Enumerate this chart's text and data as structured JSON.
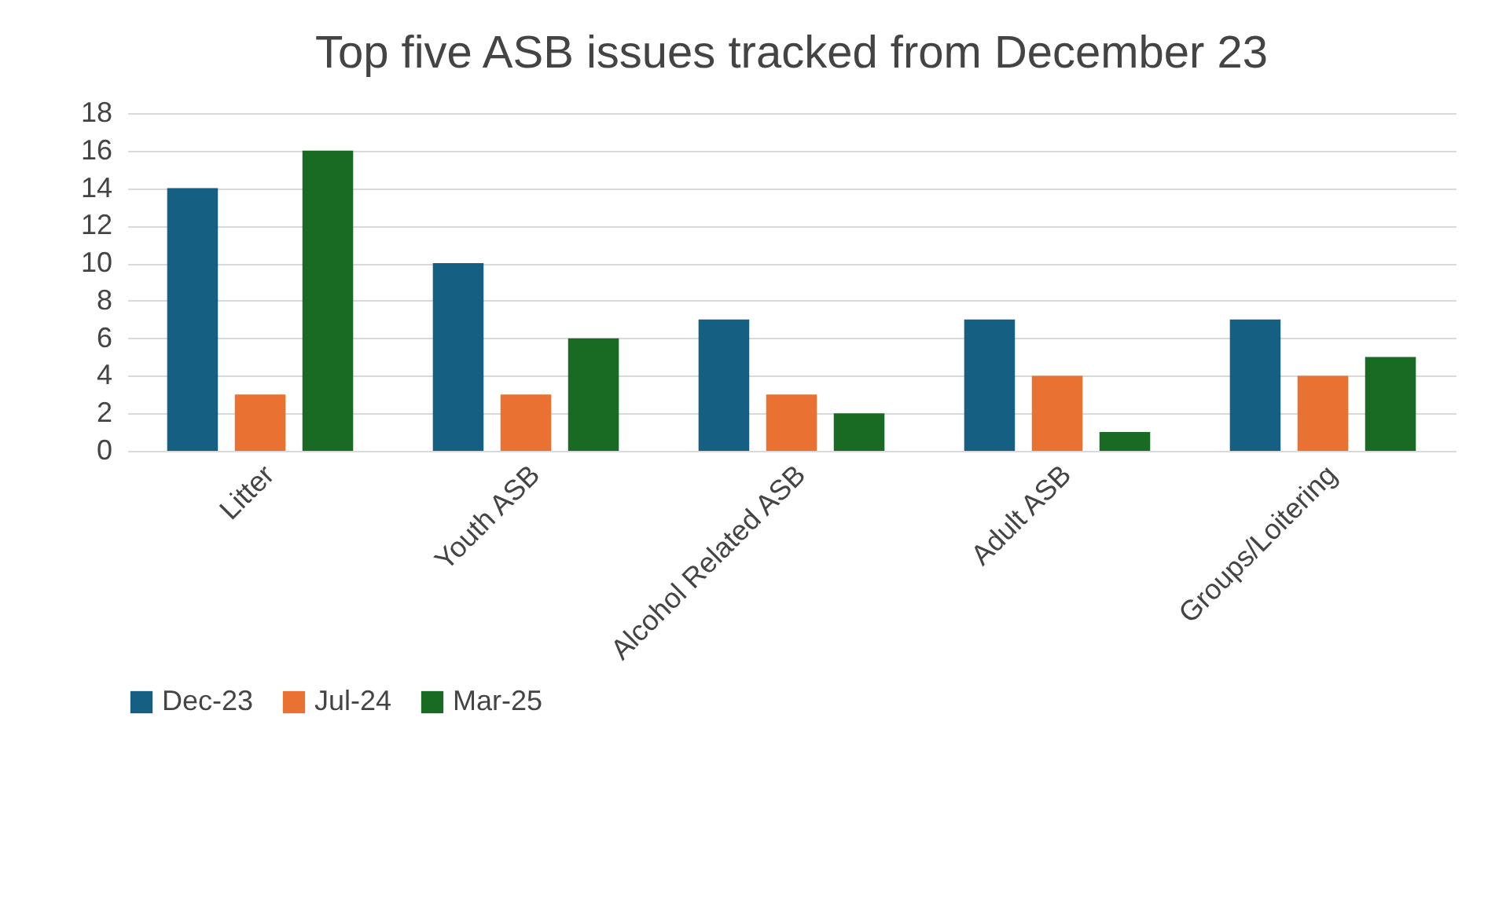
{
  "chart_data": {
    "type": "bar",
    "title": "Top five ASB issues tracked from December 23",
    "categories": [
      "Litter",
      "Youth ASB",
      "Alcohol Related ASB",
      "Adult ASB",
      "Groups/Loitering"
    ],
    "series": [
      {
        "name": "Dec-23",
        "color": "#156082",
        "values": [
          14,
          10,
          7,
          7,
          7
        ]
      },
      {
        "name": "Jul-24",
        "color": "#e97132",
        "values": [
          3,
          3,
          3,
          4,
          4
        ]
      },
      {
        "name": "Mar-25",
        "color": "#196b24",
        "values": [
          16,
          6,
          2,
          1,
          5
        ]
      }
    ],
    "ylim": [
      0,
      18
    ],
    "yticks": [
      0,
      2,
      4,
      6,
      8,
      10,
      12,
      14,
      16,
      18
    ],
    "grid": "y",
    "legend": "bottom"
  }
}
